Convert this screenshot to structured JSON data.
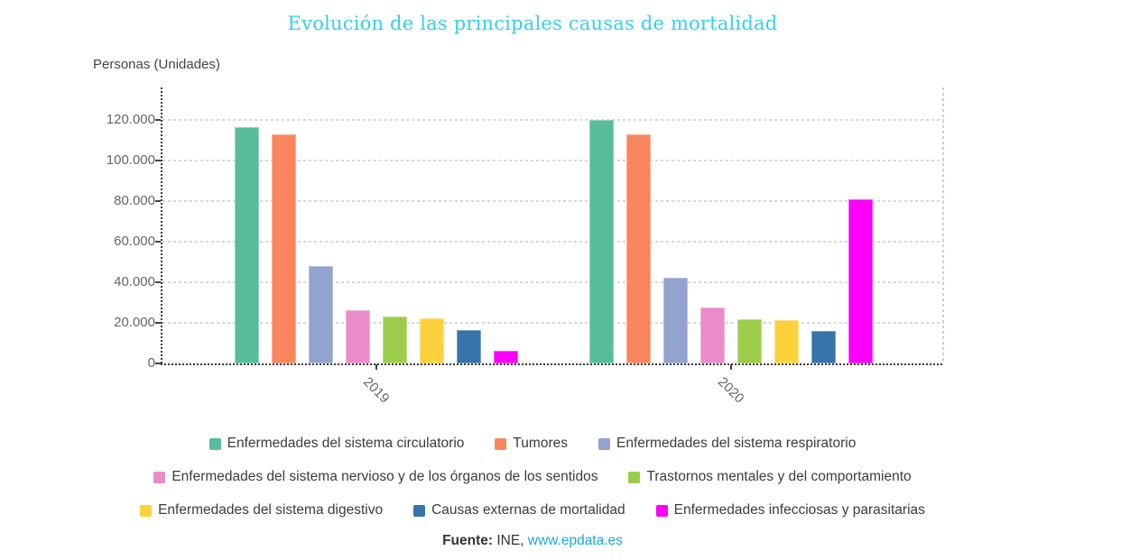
{
  "title": "Evolución de las principales causas de mortalidad",
  "colors": {
    "title": "#35d0ea",
    "link": "#1caad2",
    "axis_text": "#666666",
    "legend_text": "#3c3c3c"
  },
  "footer": {
    "source_label": "Fuente:",
    "source_text": " INE, ",
    "link": "www.epdata.es"
  },
  "chart_data": {
    "type": "bar",
    "title": "Evolución de las principales causas de mortalidad",
    "ylabel": "Personas (Unidades)",
    "xlabel": "",
    "categories": [
      "2019",
      "2020"
    ],
    "series": [
      {
        "name": "Enfermedades del sistema circulatorio",
        "color": "#57bc9c",
        "values": [
          116600,
          119900
        ]
      },
      {
        "name": "Tumores",
        "color": "#f9865f",
        "values": [
          113000,
          112700
        ]
      },
      {
        "name": "Enfermedades del sistema respiratorio",
        "color": "#91a3ce",
        "values": [
          47900,
          42300
        ]
      },
      {
        "name": "Enfermedades del sistema nervioso y de los órganos de los sentidos",
        "color": "#ea8cc8",
        "values": [
          26200,
          27600
        ]
      },
      {
        "name": "Trastornos mentales y del comportamiento",
        "color": "#9ccd4a",
        "values": [
          22900,
          21700
        ]
      },
      {
        "name": "Enfermedades del sistema digestivo",
        "color": "#fcd23c",
        "values": [
          22200,
          21400
        ]
      },
      {
        "name": "Causas externas de mortalidad",
        "color": "#3674aa",
        "values": [
          16300,
          16200
        ]
      },
      {
        "name": "Enfermedades infecciosas y parasitarias",
        "color": "#fa00fa",
        "values": [
          6300,
          80900
        ]
      }
    ],
    "ylim": [
      0,
      136000
    ],
    "yticks": [
      0,
      20000,
      40000,
      60000,
      80000,
      100000,
      120000
    ],
    "ytick_labels": [
      "0",
      "20.000",
      "40.000",
      "60.000",
      "80.000",
      "100.000",
      "120.000"
    ],
    "grid": true,
    "legend_position": "bottom",
    "legend_rows": [
      [
        0,
        1,
        2
      ],
      [
        3,
        4
      ],
      [
        5,
        6,
        7
      ]
    ]
  }
}
